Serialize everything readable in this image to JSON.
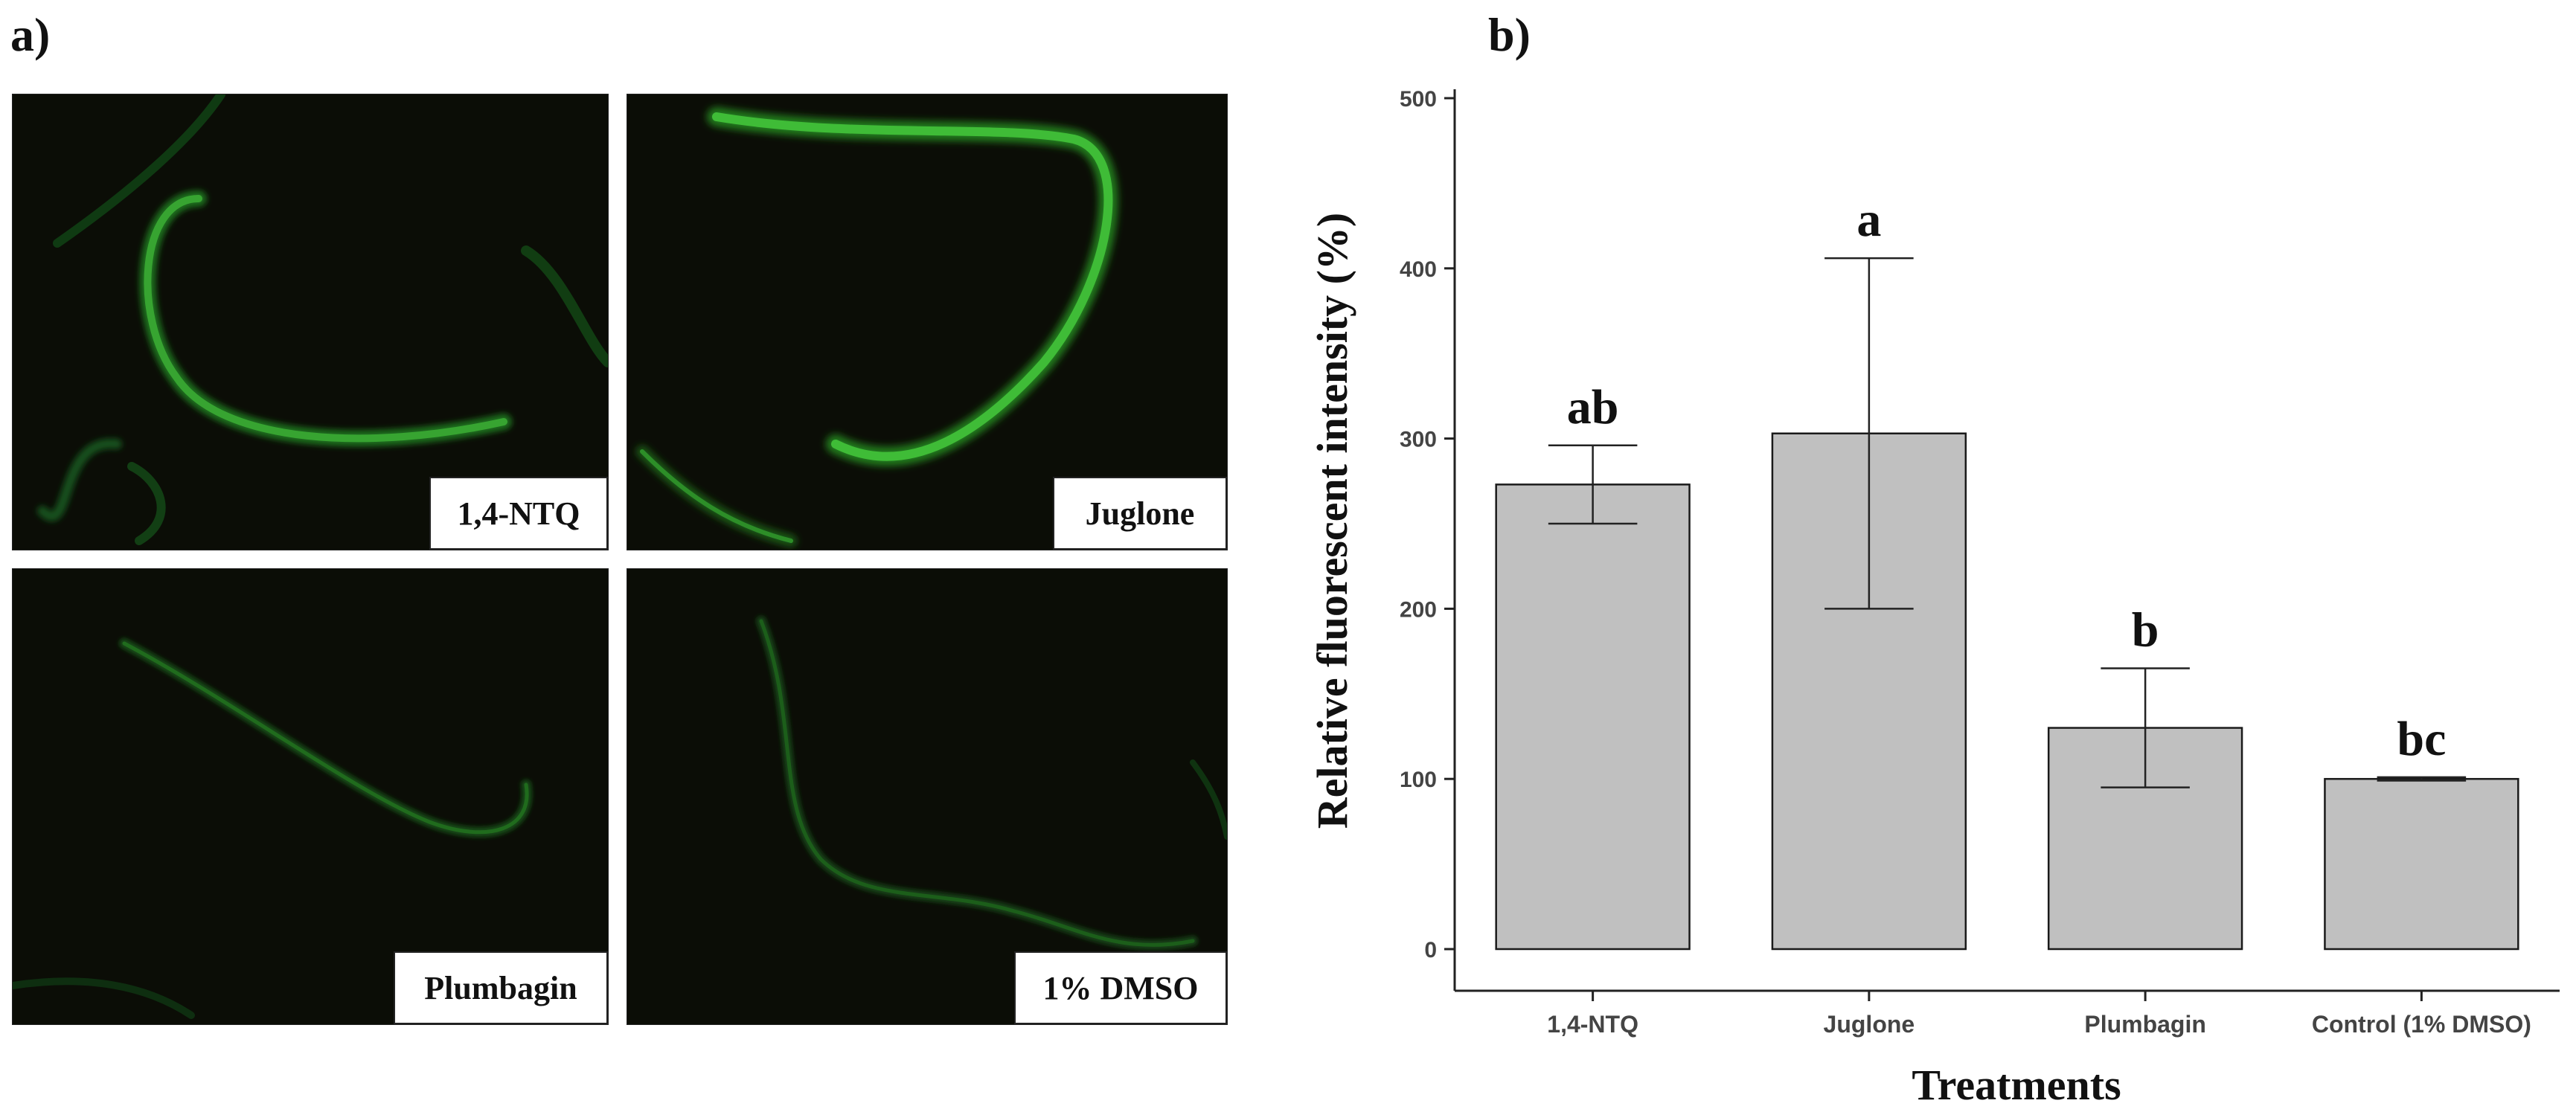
{
  "panels": {
    "a_label": "a)",
    "b_label": "b)"
  },
  "micrographs": [
    {
      "label": "1,4-NTQ"
    },
    {
      "label": "Juglone"
    },
    {
      "label": "Plumbagin"
    },
    {
      "label": "1% DMSO"
    }
  ],
  "colors": {
    "bar_fill": "#c0c0c0",
    "bar_stroke": "#1a1a1a",
    "worm_green": "#2fa02a",
    "micro_bg": "#0b0d06"
  },
  "chart_data": {
    "type": "bar",
    "categories": [
      "1,4-NTQ",
      "Juglone",
      "Plumbagin",
      "Control (1% DMSO)"
    ],
    "values": [
      273,
      303,
      130,
      100
    ],
    "error_low": [
      250,
      200,
      95,
      99
    ],
    "error_high": [
      296,
      406,
      165,
      101
    ],
    "significance": [
      "ab",
      "a",
      "b",
      "bc"
    ],
    "xlabel": "Treatments",
    "ylabel": "Relative fluorescent intensity (%)",
    "ylim": [
      0,
      500
    ],
    "yticks": [
      0,
      100,
      200,
      300,
      400,
      500
    ],
    "grid": false
  }
}
